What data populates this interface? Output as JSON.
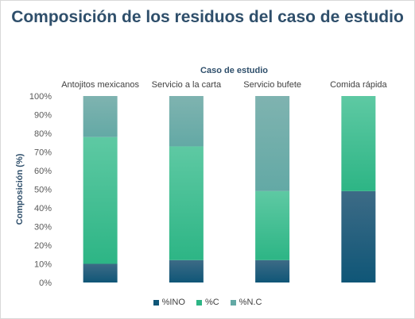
{
  "chart_data": {
    "type": "bar",
    "stacked": true,
    "title": "Composición  de los residuos del caso de estudio",
    "xlabel": "Caso de estudio",
    "ylabel": "Composición (%)",
    "categories": [
      "Antojitos mexicanos",
      "Servicio a la carta",
      "Servicio bufete",
      "Comida rápida"
    ],
    "series": [
      {
        "name": "%INO",
        "values": [
          10,
          12,
          12,
          49
        ],
        "color_top": "#3d6b86",
        "color_bottom": "#0f5677"
      },
      {
        "name": "%C",
        "values": [
          68,
          61,
          37,
          51
        ],
        "color_top": "#5ec9a3",
        "color_bottom": "#2db585"
      },
      {
        "name": "%N.C",
        "values": [
          22,
          27,
          51,
          0
        ],
        "color_top": "#7fb3b0",
        "color_bottom": "#63a9a5"
      }
    ],
    "ylim": [
      0,
      100
    ],
    "yticks": [
      "0%",
      "10%",
      "20%",
      "30%",
      "40%",
      "50%",
      "60%",
      "70%",
      "80%",
      "90%",
      "100%"
    ],
    "grid": false,
    "legend_position": "bottom"
  }
}
